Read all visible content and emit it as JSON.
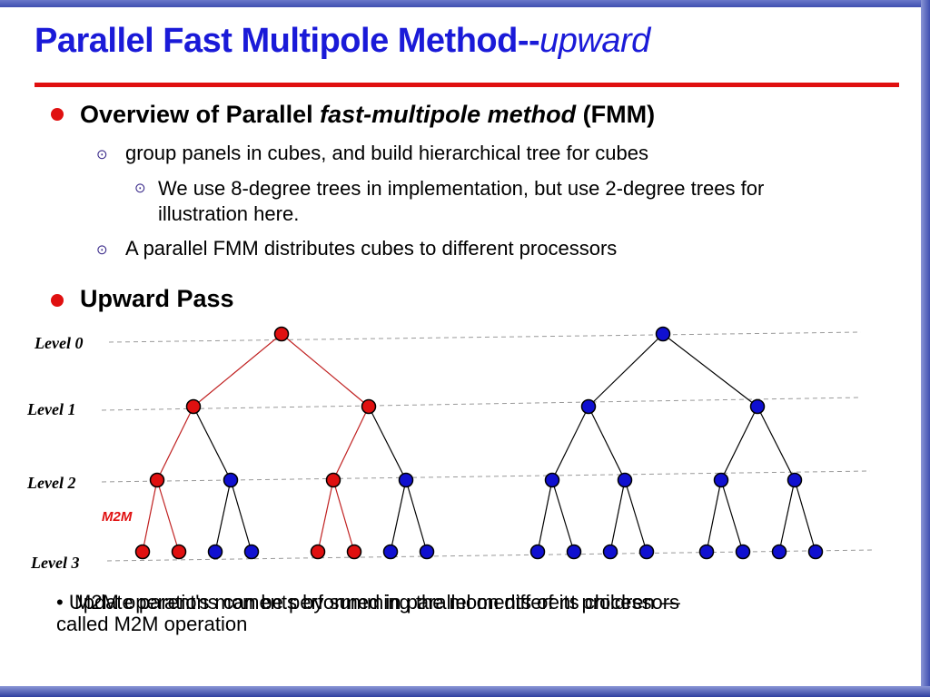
{
  "slide": {
    "title_main": "Parallel Fast Multipole Method--",
    "title_italic": "upward",
    "colors": {
      "title": "#1a1ad8",
      "accent_red": "#e01010",
      "node_red": "#e01010",
      "node_blue": "#1010d0"
    }
  },
  "bullets": {
    "overview": {
      "prefix": "Overview of Parallel ",
      "italic": "fast-multipole method",
      "suffix": " (FMM)"
    },
    "group_panels": "group panels in cubes, and build hierarchical tree for cubes",
    "degree_trees": "We use 8-degree trees in implementation, but use 2-degree trees for illustration here.",
    "distributes": "A parallel FMM distributes cubes to different processors",
    "upward_pass": "Upward Pass"
  },
  "diagram": {
    "levels": [
      "Level 0",
      "Level 1",
      "Level 2",
      "Level 3"
    ],
    "m2m_label": "M2M",
    "left_tree_colors": {
      "level0": "red",
      "level1": "red",
      "level2": [
        "red",
        "blue",
        "red",
        "blue"
      ],
      "level3": [
        "red",
        "red",
        "blue",
        "blue",
        "red",
        "red",
        "blue",
        "blue"
      ]
    },
    "right_tree_colors": "blue"
  },
  "note": {
    "line1": "• Update parent's moments by summing the moments of its children —",
    "overlap": "M2M operations can be performed in parallel on different processors",
    "line2": "called M2M operation"
  }
}
